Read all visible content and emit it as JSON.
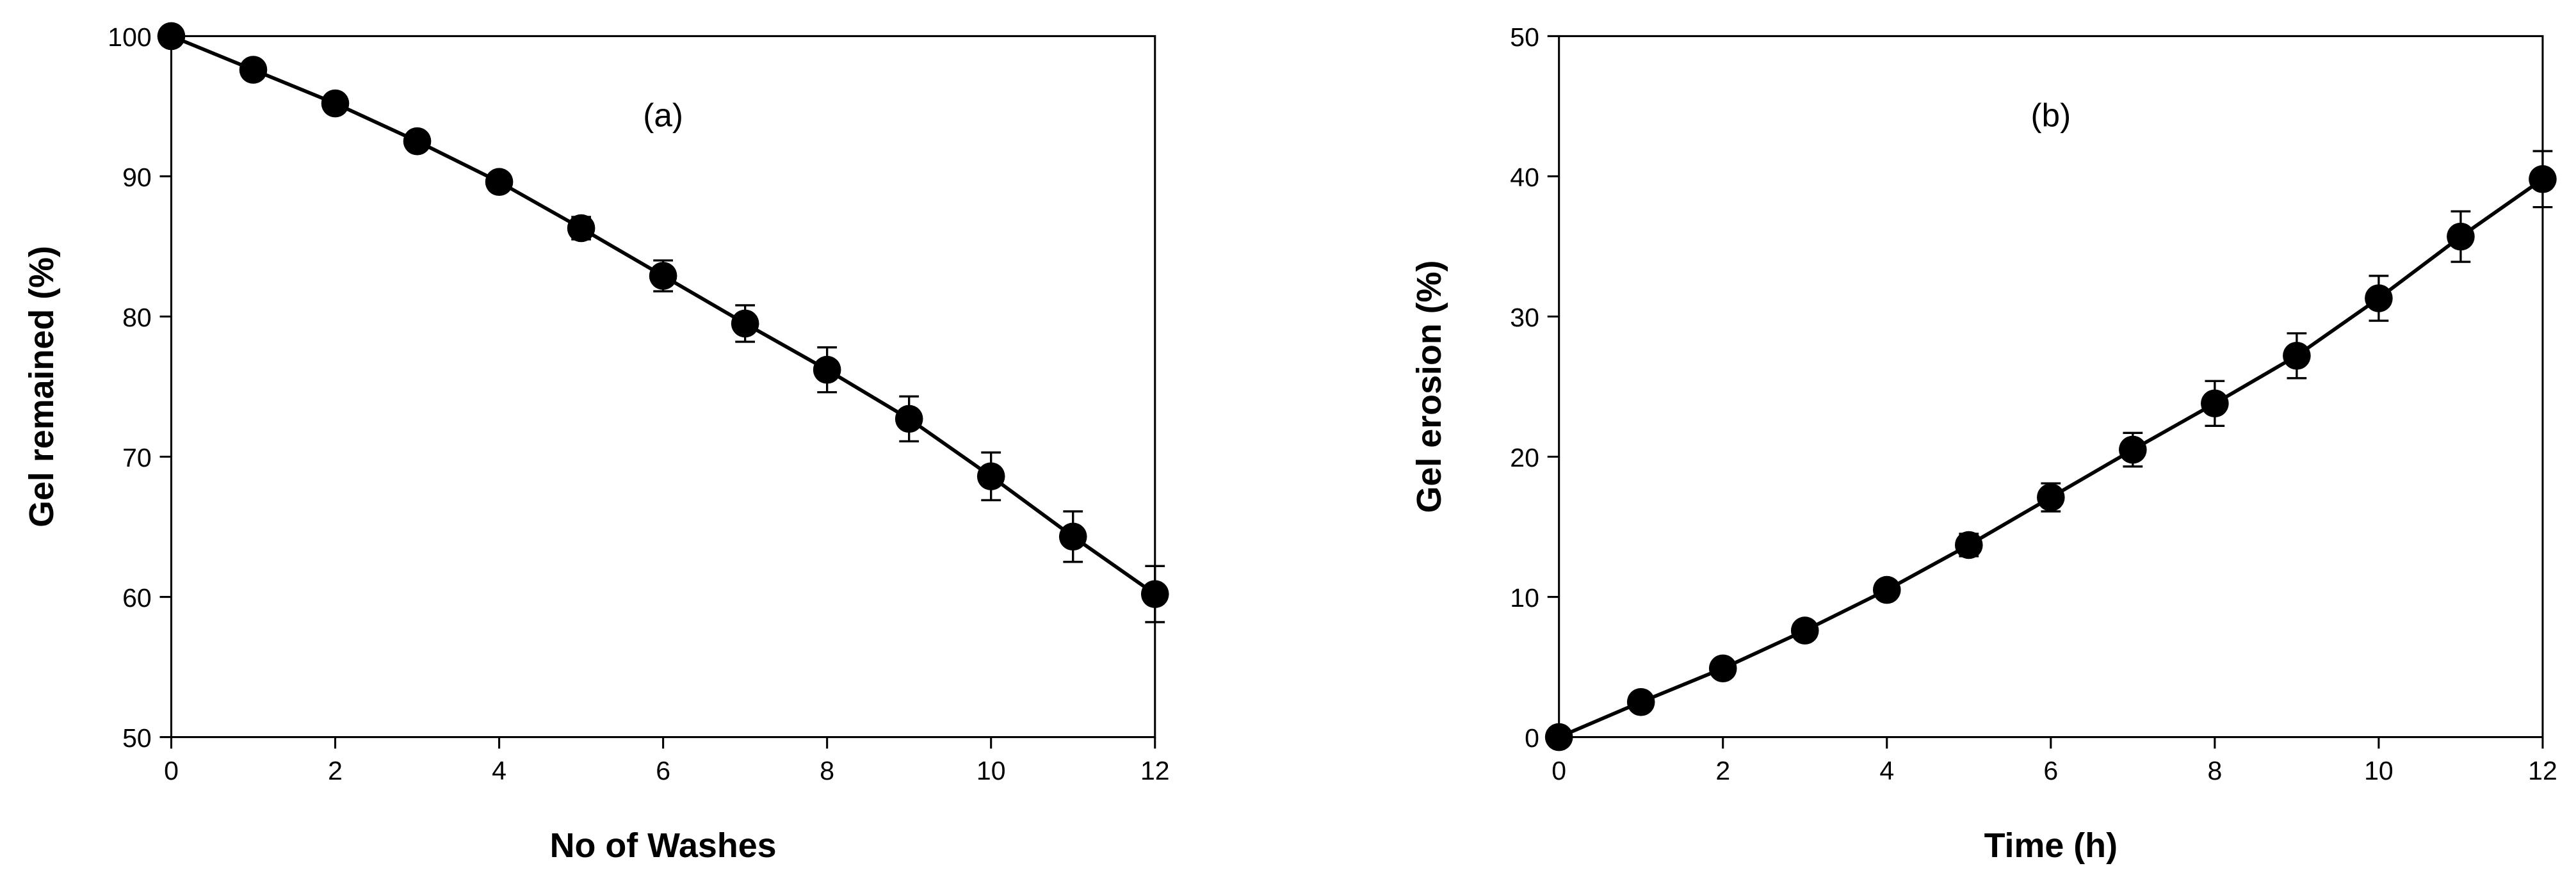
{
  "chart_data": [
    {
      "type": "line",
      "title": "(a)",
      "x_label": "No of Washes",
      "y_label": "Gel remained (%)",
      "x": [
        0,
        1,
        2,
        3,
        4,
        5,
        6,
        7,
        8,
        9,
        10,
        11,
        12
      ],
      "values": [
        100,
        97.6,
        95.2,
        92.5,
        89.6,
        86.3,
        82.9,
        79.5,
        76.2,
        72.7,
        68.6,
        64.3,
        60.2
      ],
      "errors": [
        0,
        0.3,
        0.4,
        0.5,
        0.5,
        0.8,
        1.1,
        1.3,
        1.6,
        1.6,
        1.7,
        1.8,
        2.0
      ],
      "color": "#000000",
      "xlim": [
        0,
        12
      ],
      "xticks": [
        0,
        2,
        4,
        6,
        8,
        10,
        12
      ],
      "ylim": [
        50,
        100
      ],
      "yticks": [
        50,
        60,
        70,
        80,
        90,
        100
      ]
    },
    {
      "type": "line",
      "title": "(b)",
      "x_label": "Time (h)",
      "y_label": "Gel erosion (%)",
      "x": [
        0,
        1,
        2,
        3,
        4,
        5,
        6,
        7,
        8,
        9,
        10,
        11,
        12
      ],
      "values": [
        0,
        2.5,
        4.9,
        7.6,
        10.5,
        13.7,
        17.1,
        20.5,
        23.8,
        27.2,
        31.3,
        35.7,
        39.8
      ],
      "errors": [
        0,
        0.3,
        0.4,
        0.4,
        0.5,
        0.8,
        1.0,
        1.2,
        1.6,
        1.6,
        1.6,
        1.8,
        2.0
      ],
      "color": "#000000",
      "xlim": [
        0,
        12
      ],
      "xticks": [
        0,
        2,
        4,
        6,
        8,
        10,
        12
      ],
      "ylim": [
        0,
        50
      ],
      "yticks": [
        0,
        10,
        20,
        30,
        40,
        50
      ]
    }
  ]
}
